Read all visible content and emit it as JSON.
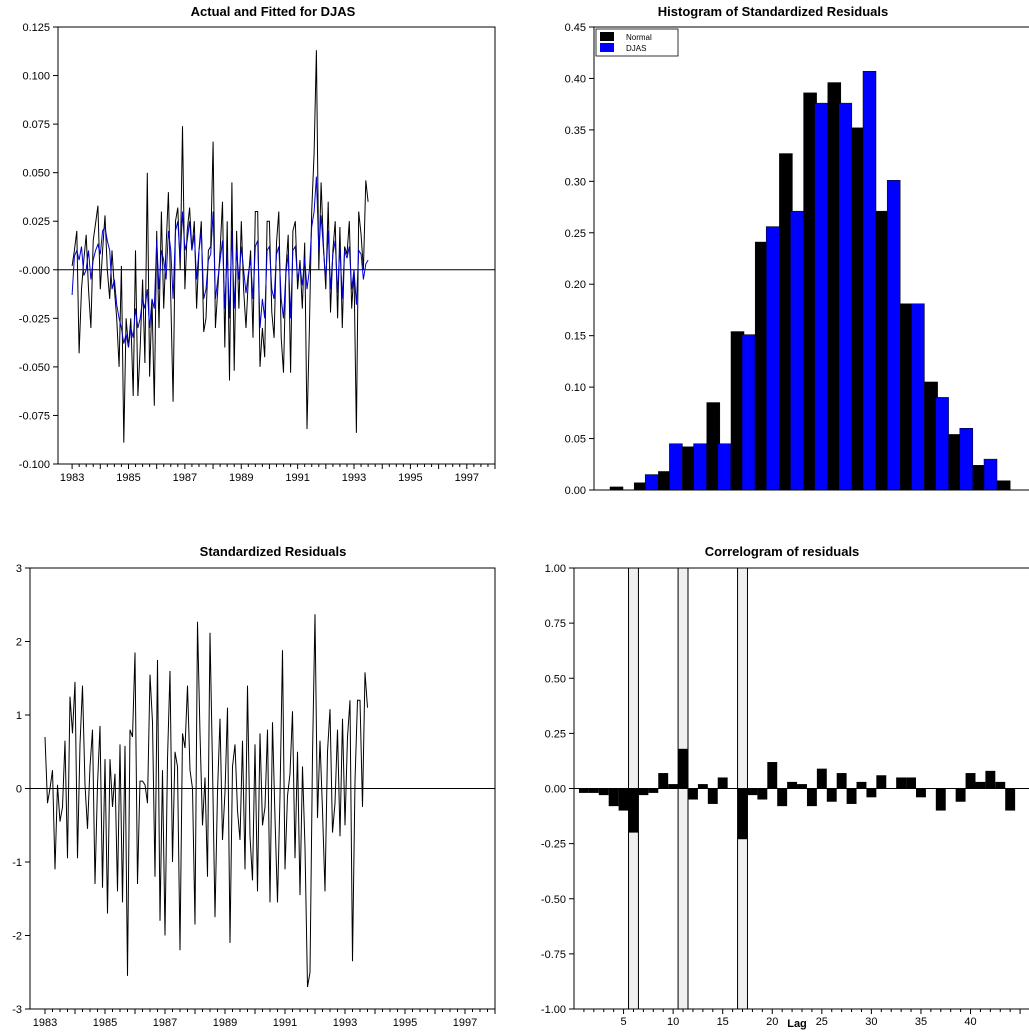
{
  "colors": {
    "actual": "#000000",
    "fitted": "#0000cc",
    "normal": "#000000",
    "djas": "#0000ff",
    "bar_outline": "#000000",
    "sig_band": "#f0f0f0"
  },
  "chart_data": [
    {
      "id": "actual-fitted",
      "type": "line",
      "title": "Actual and Fitted for DJAS",
      "xlim": [
        1982.5,
        1998.0
      ],
      "ylim": [
        -0.1,
        0.125
      ],
      "yticks": [
        -0.1,
        -0.075,
        -0.05,
        -0.025,
        0.0,
        0.025,
        0.05,
        0.075,
        0.1,
        0.125
      ],
      "ytick_labels": [
        "-0.100",
        "-0.075",
        "-0.050",
        "-0.025",
        "-0.000",
        "0.025",
        "0.050",
        "0.075",
        "0.100",
        "0.125"
      ],
      "xticks": [
        1983,
        1985,
        1987,
        1989,
        1991,
        1993,
        1995,
        1997
      ],
      "x_start": 1983.0,
      "x_step": 0.08333,
      "series": [
        {
          "values": [
            0.002,
            0.01,
            0.02,
            -0.043,
            -0.01,
            0.005,
            0.018,
            -0.01,
            -0.03,
            0.015,
            0.024,
            0.033,
            -0.01,
            0.01,
            0.028,
            0.0,
            -0.015,
            0.01,
            -0.01,
            -0.025,
            -0.05,
            0.002,
            -0.089,
            -0.025,
            -0.04,
            -0.025,
            -0.065,
            0.01,
            -0.065,
            -0.04,
            -0.005,
            -0.048,
            0.05,
            -0.055,
            -0.015,
            -0.07,
            0.02,
            -0.03,
            0.03,
            -0.02,
            0.012,
            0.04,
            -0.015,
            -0.068,
            0.025,
            0.032,
            0.0,
            0.074,
            -0.01,
            0.02,
            0.032,
            0.01,
            0.025,
            -0.02,
            0.01,
            0.025,
            -0.032,
            -0.025,
            0.01,
            0.012,
            0.066,
            -0.03,
            -0.01,
            0.01,
            0.035,
            -0.04,
            0.025,
            -0.057,
            0.045,
            -0.052,
            0.02,
            -0.02,
            0.025,
            -0.01,
            -0.03,
            -0.005,
            0.01,
            -0.035,
            0.03,
            0.03,
            -0.05,
            -0.03,
            -0.045,
            0.025,
            0.025,
            -0.022,
            -0.035,
            0.014,
            0.03,
            -0.035,
            -0.053,
            0.0,
            0.018,
            -0.053,
            0.02,
            0.025,
            -0.01,
            0.005,
            -0.02,
            0.014,
            -0.082,
            -0.03,
            0.03,
            0.06,
            0.113,
            0.0,
            0.045,
            0.012,
            -0.01,
            0.035,
            -0.022,
            0.01,
            0.025,
            -0.025,
            0.022,
            -0.03,
            0.012,
            0.008,
            0.025,
            -0.02,
            0.0,
            -0.084,
            0.03,
            0.018,
            0.0,
            0.046,
            0.035
          ]
        },
        {
          "values": [
            -0.013,
            0.007,
            0.01,
            0.005,
            0.012,
            -0.003,
            0.0,
            0.01,
            -0.005,
            0.005,
            0.01,
            0.013,
            0.008,
            0.02,
            0.022,
            0.015,
            0.01,
            -0.01,
            -0.005,
            -0.018,
            -0.025,
            -0.03,
            -0.038,
            -0.033,
            -0.04,
            -0.03,
            -0.035,
            -0.02,
            -0.03,
            -0.025,
            -0.015,
            -0.02,
            -0.01,
            -0.03,
            -0.015,
            -0.02,
            0.015,
            -0.01,
            0.01,
            0.005,
            -0.005,
            0.02,
            0.01,
            -0.015,
            0.02,
            0.025,
            0.005,
            0.03,
            0.01,
            0.015,
            0.025,
            0.01,
            0.018,
            -0.005,
            0.01,
            0.02,
            -0.015,
            -0.01,
            0.005,
            0.008,
            0.03,
            -0.015,
            -0.005,
            0.005,
            0.015,
            -0.02,
            0.01,
            -0.025,
            0.02,
            -0.02,
            0.01,
            -0.005,
            0.012,
            0.0,
            -0.012,
            -0.002,
            0.005,
            -0.015,
            0.012,
            0.015,
            -0.03,
            -0.015,
            -0.025,
            0.01,
            0.012,
            -0.01,
            -0.015,
            0.008,
            0.012,
            -0.015,
            -0.025,
            -0.002,
            0.008,
            -0.025,
            0.01,
            0.012,
            -0.005,
            0.002,
            -0.008,
            0.006,
            -0.01,
            0.0,
            0.022,
            0.03,
            0.048,
            0.01,
            0.028,
            0.01,
            -0.005,
            0.02,
            -0.01,
            0.008,
            0.015,
            -0.012,
            0.012,
            -0.015,
            0.01,
            0.006,
            0.012,
            -0.01,
            0.0,
            -0.018,
            0.01,
            0.008,
            -0.005,
            0.003,
            0.005
          ]
        }
      ]
    },
    {
      "id": "histogram",
      "type": "bar",
      "title": "Histogram of Standardized Residuals",
      "ylim": [
        0.0,
        0.45
      ],
      "yticks": [
        0.0,
        0.05,
        0.1,
        0.15,
        0.2,
        0.25,
        0.3,
        0.35,
        0.4,
        0.45
      ],
      "ytick_labels": [
        "0.00",
        "0.05",
        "0.10",
        "0.15",
        "0.20",
        "0.25",
        "0.30",
        "0.35",
        "0.40",
        "0.45"
      ],
      "legend": {
        "placement": "top-left",
        "entries": [
          "Normal",
          "DJAS"
        ]
      },
      "series": [
        {
          "name": "Normal",
          "values": [
            0.003,
            0.007,
            0.018,
            0.042,
            0.085,
            0.154,
            0.241,
            0.327,
            0.386,
            0.396,
            0.352,
            0.271,
            0.181,
            0.105,
            0.054,
            0.024,
            0.009
          ]
        },
        {
          "name": "DJAS",
          "values": [
            0.0,
            0.015,
            0.045,
            0.045,
            0.045,
            0.151,
            0.256,
            0.271,
            0.376,
            0.376,
            0.407,
            0.301,
            0.181,
            0.09,
            0.06,
            0.03,
            0.0
          ]
        }
      ]
    },
    {
      "id": "std-residuals",
      "type": "line",
      "title": "Standardized Residuals",
      "xlim": [
        1982.5,
        1998.0
      ],
      "ylim": [
        -3,
        3
      ],
      "yticks": [
        -3,
        -2,
        -1,
        0,
        1,
        2,
        3
      ],
      "ytick_labels": [
        "-3",
        "-2",
        "-1",
        "0",
        "1",
        "2",
        "3"
      ],
      "xticks": [
        1983,
        1985,
        1987,
        1989,
        1991,
        1993,
        1995,
        1997
      ],
      "x_start": 1983.0,
      "x_step": 0.08333,
      "series": [
        {
          "values": [
            0.7,
            -0.2,
            0.0,
            0.25,
            -1.1,
            0.05,
            -0.45,
            -0.25,
            0.65,
            -0.95,
            1.25,
            0.75,
            1.45,
            -0.95,
            0.6,
            1.4,
            0.05,
            -0.55,
            0.3,
            0.8,
            -1.3,
            0.05,
            0.85,
            -1.35,
            0.4,
            -1.7,
            0.4,
            -0.25,
            0.2,
            -1.4,
            0.6,
            -1.55,
            0.58,
            -2.55,
            0.8,
            0.7,
            1.85,
            -1.3,
            0.1,
            0.1,
            0.05,
            -0.2,
            1.55,
            0.9,
            -1.2,
            1.75,
            -1.8,
            0.25,
            -2.0,
            0.4,
            1.6,
            -1.0,
            0.5,
            0.3,
            -2.2,
            0.75,
            0.55,
            1.4,
            0.25,
            0.0,
            -1.85,
            2.27,
            0.75,
            -0.5,
            0.15,
            -1.2,
            2.12,
            0.3,
            -1.75,
            -0.05,
            0.95,
            -0.7,
            -0.05,
            1.1,
            -2.1,
            0.3,
            0.6,
            -0.3,
            -0.7,
            0.65,
            -1.1,
            1.4,
            -0.65,
            -1.25,
            0.6,
            -1.4,
            0.75,
            -0.5,
            -0.25,
            0.8,
            -1.55,
            0.9,
            -0.4,
            -1.55,
            -0.1,
            1.88,
            -1.1,
            -0.1,
            0.2,
            1.05,
            -0.95,
            0.5,
            -1.45,
            0.3,
            -0.8,
            -2.7,
            -2.5,
            0.45,
            2.37,
            -0.4,
            0.65,
            -0.3,
            -1.4,
            0.5,
            1.08,
            -0.6,
            -0.2,
            0.8,
            -0.65,
            0.95,
            -0.5,
            0.7,
            1.2,
            -2.35,
            0.1,
            1.2,
            1.2,
            -0.25,
            1.58,
            1.1
          ]
        }
      ]
    },
    {
      "id": "correlogram",
      "type": "bar",
      "title": "Correlogram of residuals",
      "xlabel": "Lag",
      "xlim": [
        0,
        46
      ],
      "ylim": [
        -1.0,
        1.0
      ],
      "yticks": [
        -1.0,
        -0.75,
        -0.5,
        -0.25,
        0.0,
        0.25,
        0.5,
        0.75,
        1.0
      ],
      "ytick_labels": [
        "-1.00",
        "-0.75",
        "-0.50",
        "-0.25",
        "0.00",
        "0.25",
        "0.50",
        "0.75",
        "1.00"
      ],
      "xticks": [
        5,
        10,
        15,
        20,
        25,
        30,
        35,
        40
      ],
      "significant_lags": [
        6,
        11,
        17
      ],
      "values": [
        -0.02,
        -0.02,
        -0.03,
        -0.08,
        -0.1,
        -0.2,
        -0.03,
        -0.02,
        0.07,
        0.02,
        0.18,
        -0.05,
        0.02,
        -0.07,
        0.05,
        0.0,
        -0.23,
        -0.03,
        -0.05,
        0.12,
        -0.08,
        0.03,
        0.02,
        -0.08,
        0.09,
        -0.06,
        0.07,
        -0.07,
        0.03,
        -0.04,
        0.06,
        0.0,
        0.05,
        0.05,
        -0.04,
        0.0,
        -0.1,
        0.0,
        -0.06,
        0.07,
        0.03,
        0.08,
        0.03,
        -0.1
      ]
    }
  ]
}
